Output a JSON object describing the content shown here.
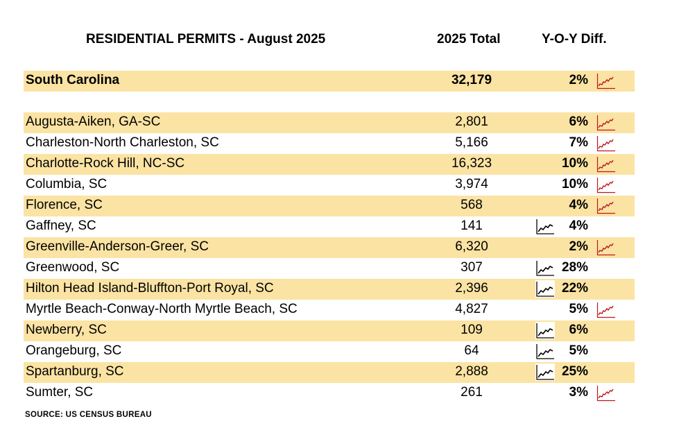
{
  "header": {
    "title": "RESIDENTIAL PERMITS - August 2025",
    "total_label": "2025 Total",
    "yoy_label": "Y-O-Y Diff."
  },
  "summary": {
    "name": "South Carolina",
    "total": "32,179",
    "yoy": "2%",
    "trend_icon": "red-trend-icon"
  },
  "rows": [
    {
      "name": "Augusta-Aiken, GA-SC",
      "total": "2,801",
      "yoy": "6%",
      "trend_icon": "red-trend-icon"
    },
    {
      "name": "Charleston-North Charleston, SC",
      "total": "5,166",
      "yoy": "7%",
      "trend_icon": "red-trend-icon"
    },
    {
      "name": "Charlotte-Rock Hill, NC-SC",
      "total": "16,323",
      "yoy": "10%",
      "trend_icon": "red-trend-icon"
    },
    {
      "name": "Columbia, SC",
      "total": "3,974",
      "yoy": "10%",
      "trend_icon": "red-trend-icon"
    },
    {
      "name": "Florence, SC",
      "total": "568",
      "yoy": "4%",
      "trend_icon": "red-trend-icon"
    },
    {
      "name": "Gaffney, SC",
      "total": "141",
      "yoy": "4%",
      "trend_icon": "black-trend-icon"
    },
    {
      "name": "Greenville-Anderson-Greer, SC",
      "total": "6,320",
      "yoy": "2%",
      "trend_icon": "red-trend-icon"
    },
    {
      "name": "Greenwood, SC",
      "total": "307",
      "yoy": "28%",
      "trend_icon": "black-trend-icon"
    },
    {
      "name": "Hilton Head Island-Bluffton-Port Royal, SC",
      "total": "2,396",
      "yoy": "22%",
      "trend_icon": "black-trend-icon"
    },
    {
      "name": "Myrtle Beach-Conway-North Myrtle Beach, SC",
      "total": "4,827",
      "yoy": "5%",
      "trend_icon": "red-trend-icon"
    },
    {
      "name": "Newberry, SC",
      "total": "109",
      "yoy": "6%",
      "trend_icon": "black-trend-icon"
    },
    {
      "name": "Orangeburg, SC",
      "total": "64",
      "yoy": "5%",
      "trend_icon": "black-trend-icon"
    },
    {
      "name": "Spartanburg, SC",
      "total": "2,888",
      "yoy": "25%",
      "trend_icon": "black-trend-icon"
    },
    {
      "name": "Sumter, SC",
      "total": "261",
      "yoy": "3%",
      "trend_icon": "red-trend-icon"
    }
  ],
  "source": "SOURCE:  US CENSUS BUREAU",
  "colors": {
    "shade": "#fbe3a3",
    "red_icon": "#c0151b",
    "black_icon": "#000000"
  }
}
